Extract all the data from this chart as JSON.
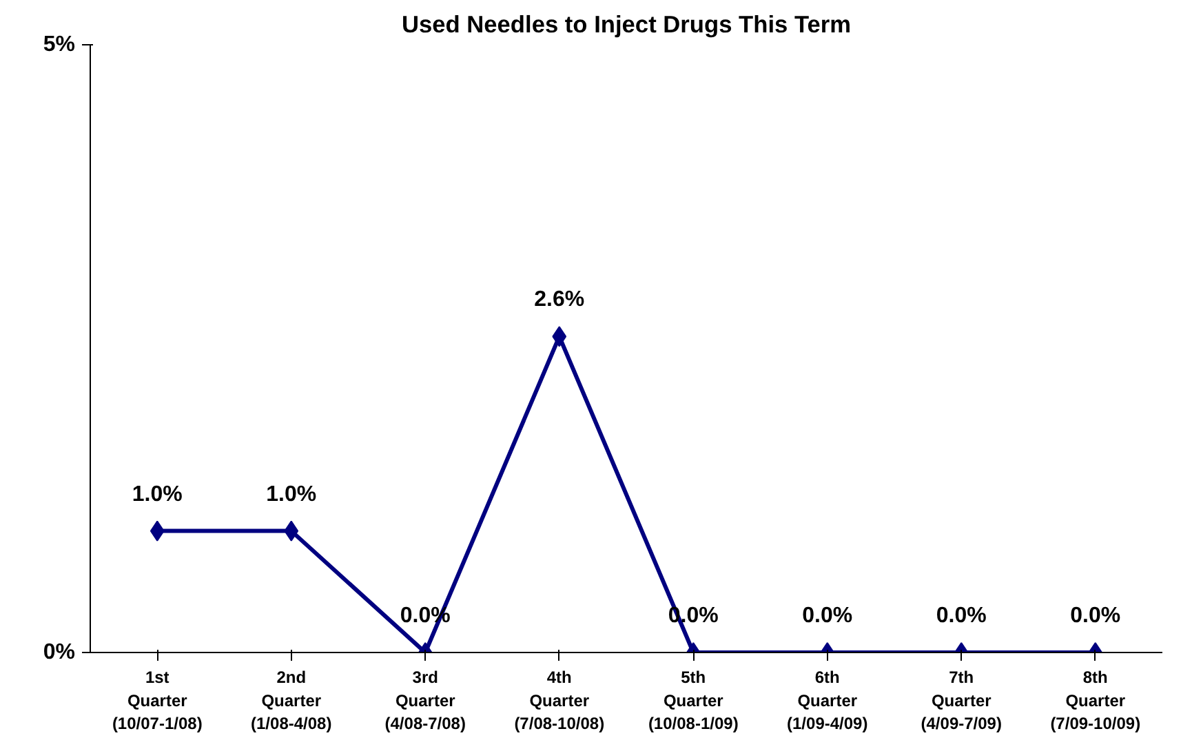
{
  "chart_data": {
    "type": "line",
    "title": "Used Needles to Inject Drugs This Term",
    "categories": [
      "1st\nQuarter\n(10/07-1/08)",
      "2nd\nQuarter\n(1/08-4/08)",
      "3rd\nQuarter\n(4/08-7/08)",
      "4th\nQuarter\n(7/08-10/08)",
      "5th\nQuarter\n(10/08-1/09)",
      "6th\nQuarter\n(1/09-4/09)",
      "7th\nQuarter\n(4/09-7/09)",
      "8th\nQuarter\n(7/09-10/09)"
    ],
    "series": [
      {
        "color": "#000080",
        "values": [
          1.0,
          1.0,
          0.0,
          2.6,
          0.0,
          0.0,
          0.0,
          0.0
        ],
        "value_labels": [
          "1.0%",
          "1.0%",
          "0.0%",
          "2.6%",
          "0.0%",
          "0.0%",
          "0.0%",
          "0.0%"
        ]
      }
    ],
    "ylim": [
      0,
      5
    ],
    "yticks": [
      {
        "value": 0,
        "label": "0%"
      },
      {
        "value": 5,
        "label": "5%"
      }
    ],
    "grid": false,
    "marker": "diamond",
    "line_style": "solid"
  }
}
